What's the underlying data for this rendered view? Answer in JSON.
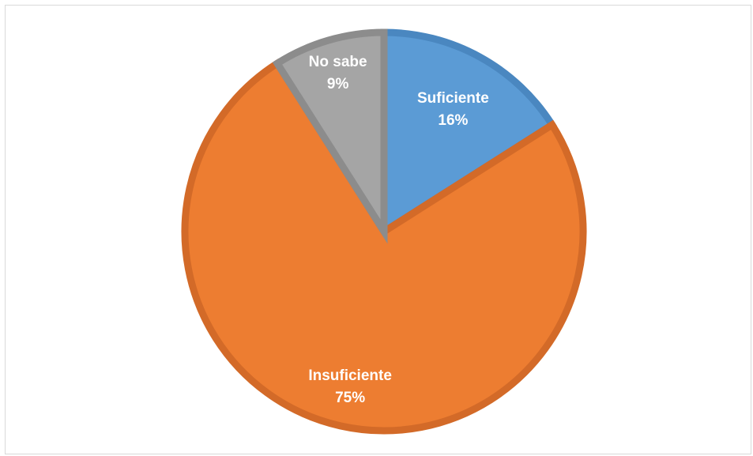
{
  "chart_data": {
    "type": "pie",
    "title": "",
    "slices": [
      {
        "label": "Suficiente",
        "value": 16,
        "percent_label": "16%",
        "color": "#5B9BD5",
        "border": "#4A87C0"
      },
      {
        "label": "Insuficiente",
        "value": 75,
        "percent_label": "75%",
        "color": "#ED7D31",
        "border": "#D36A28"
      },
      {
        "label": "No sabe",
        "value": 9,
        "percent_label": "9%",
        "color": "#A5A5A5",
        "border": "#8C8C8C"
      }
    ],
    "start_angle": "12 o'clock",
    "direction": "clockwise",
    "legend": "none",
    "data_labels": "inside"
  }
}
